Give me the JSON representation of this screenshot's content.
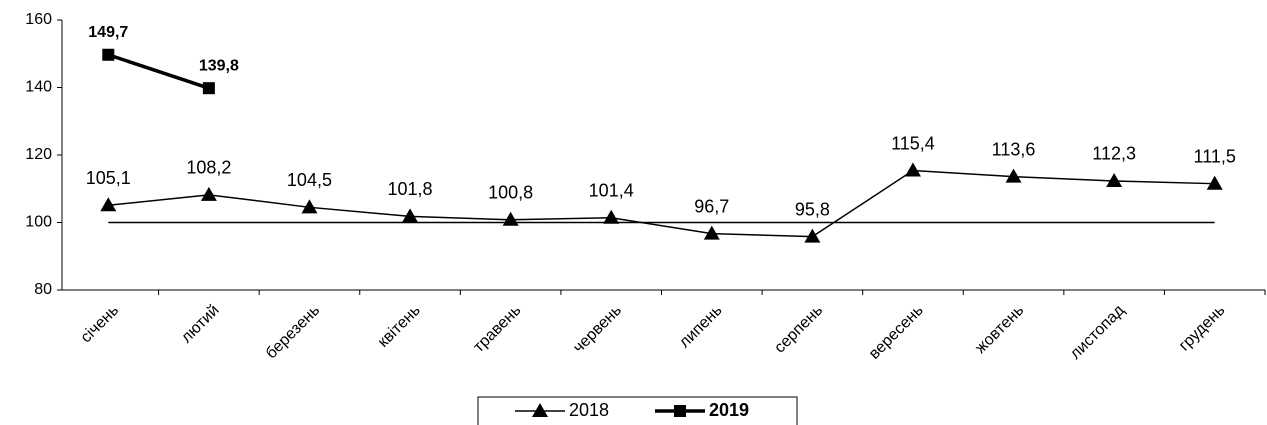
{
  "chart_data": {
    "type": "line",
    "categories": [
      "січень",
      "лютий",
      "березень",
      "квітень",
      "травень",
      "червень",
      "липень",
      "серпень",
      "вересень",
      "жовтень",
      "листопад",
      "грудень"
    ],
    "series": [
      {
        "name": "2018",
        "color": "#000000",
        "marker": "triangle",
        "values": [
          105.1,
          108.2,
          104.5,
          101.8,
          100.8,
          101.4,
          96.7,
          95.8,
          115.4,
          113.6,
          112.3,
          111.5
        ],
        "value_labels": [
          "105,1",
          "108,2",
          "104,5",
          "101,8",
          "100,8",
          "101,4",
          "96,7",
          "95,8",
          "115,4",
          "113,6",
          "112,3",
          "111,5"
        ]
      },
      {
        "name": "2019",
        "color": "#000000",
        "marker": "square",
        "values": [
          149.7,
          139.8,
          null,
          null,
          null,
          null,
          null,
          null,
          null,
          null,
          null,
          null
        ],
        "value_labels": [
          "149,7",
          "139,8",
          null,
          null,
          null,
          null,
          null,
          null,
          null,
          null,
          null,
          null
        ]
      }
    ],
    "reference_line": 100,
    "ylim": [
      80,
      160
    ],
    "yticks": [
      80,
      100,
      120,
      140,
      160
    ],
    "legend": "bottom",
    "grid": false
  }
}
